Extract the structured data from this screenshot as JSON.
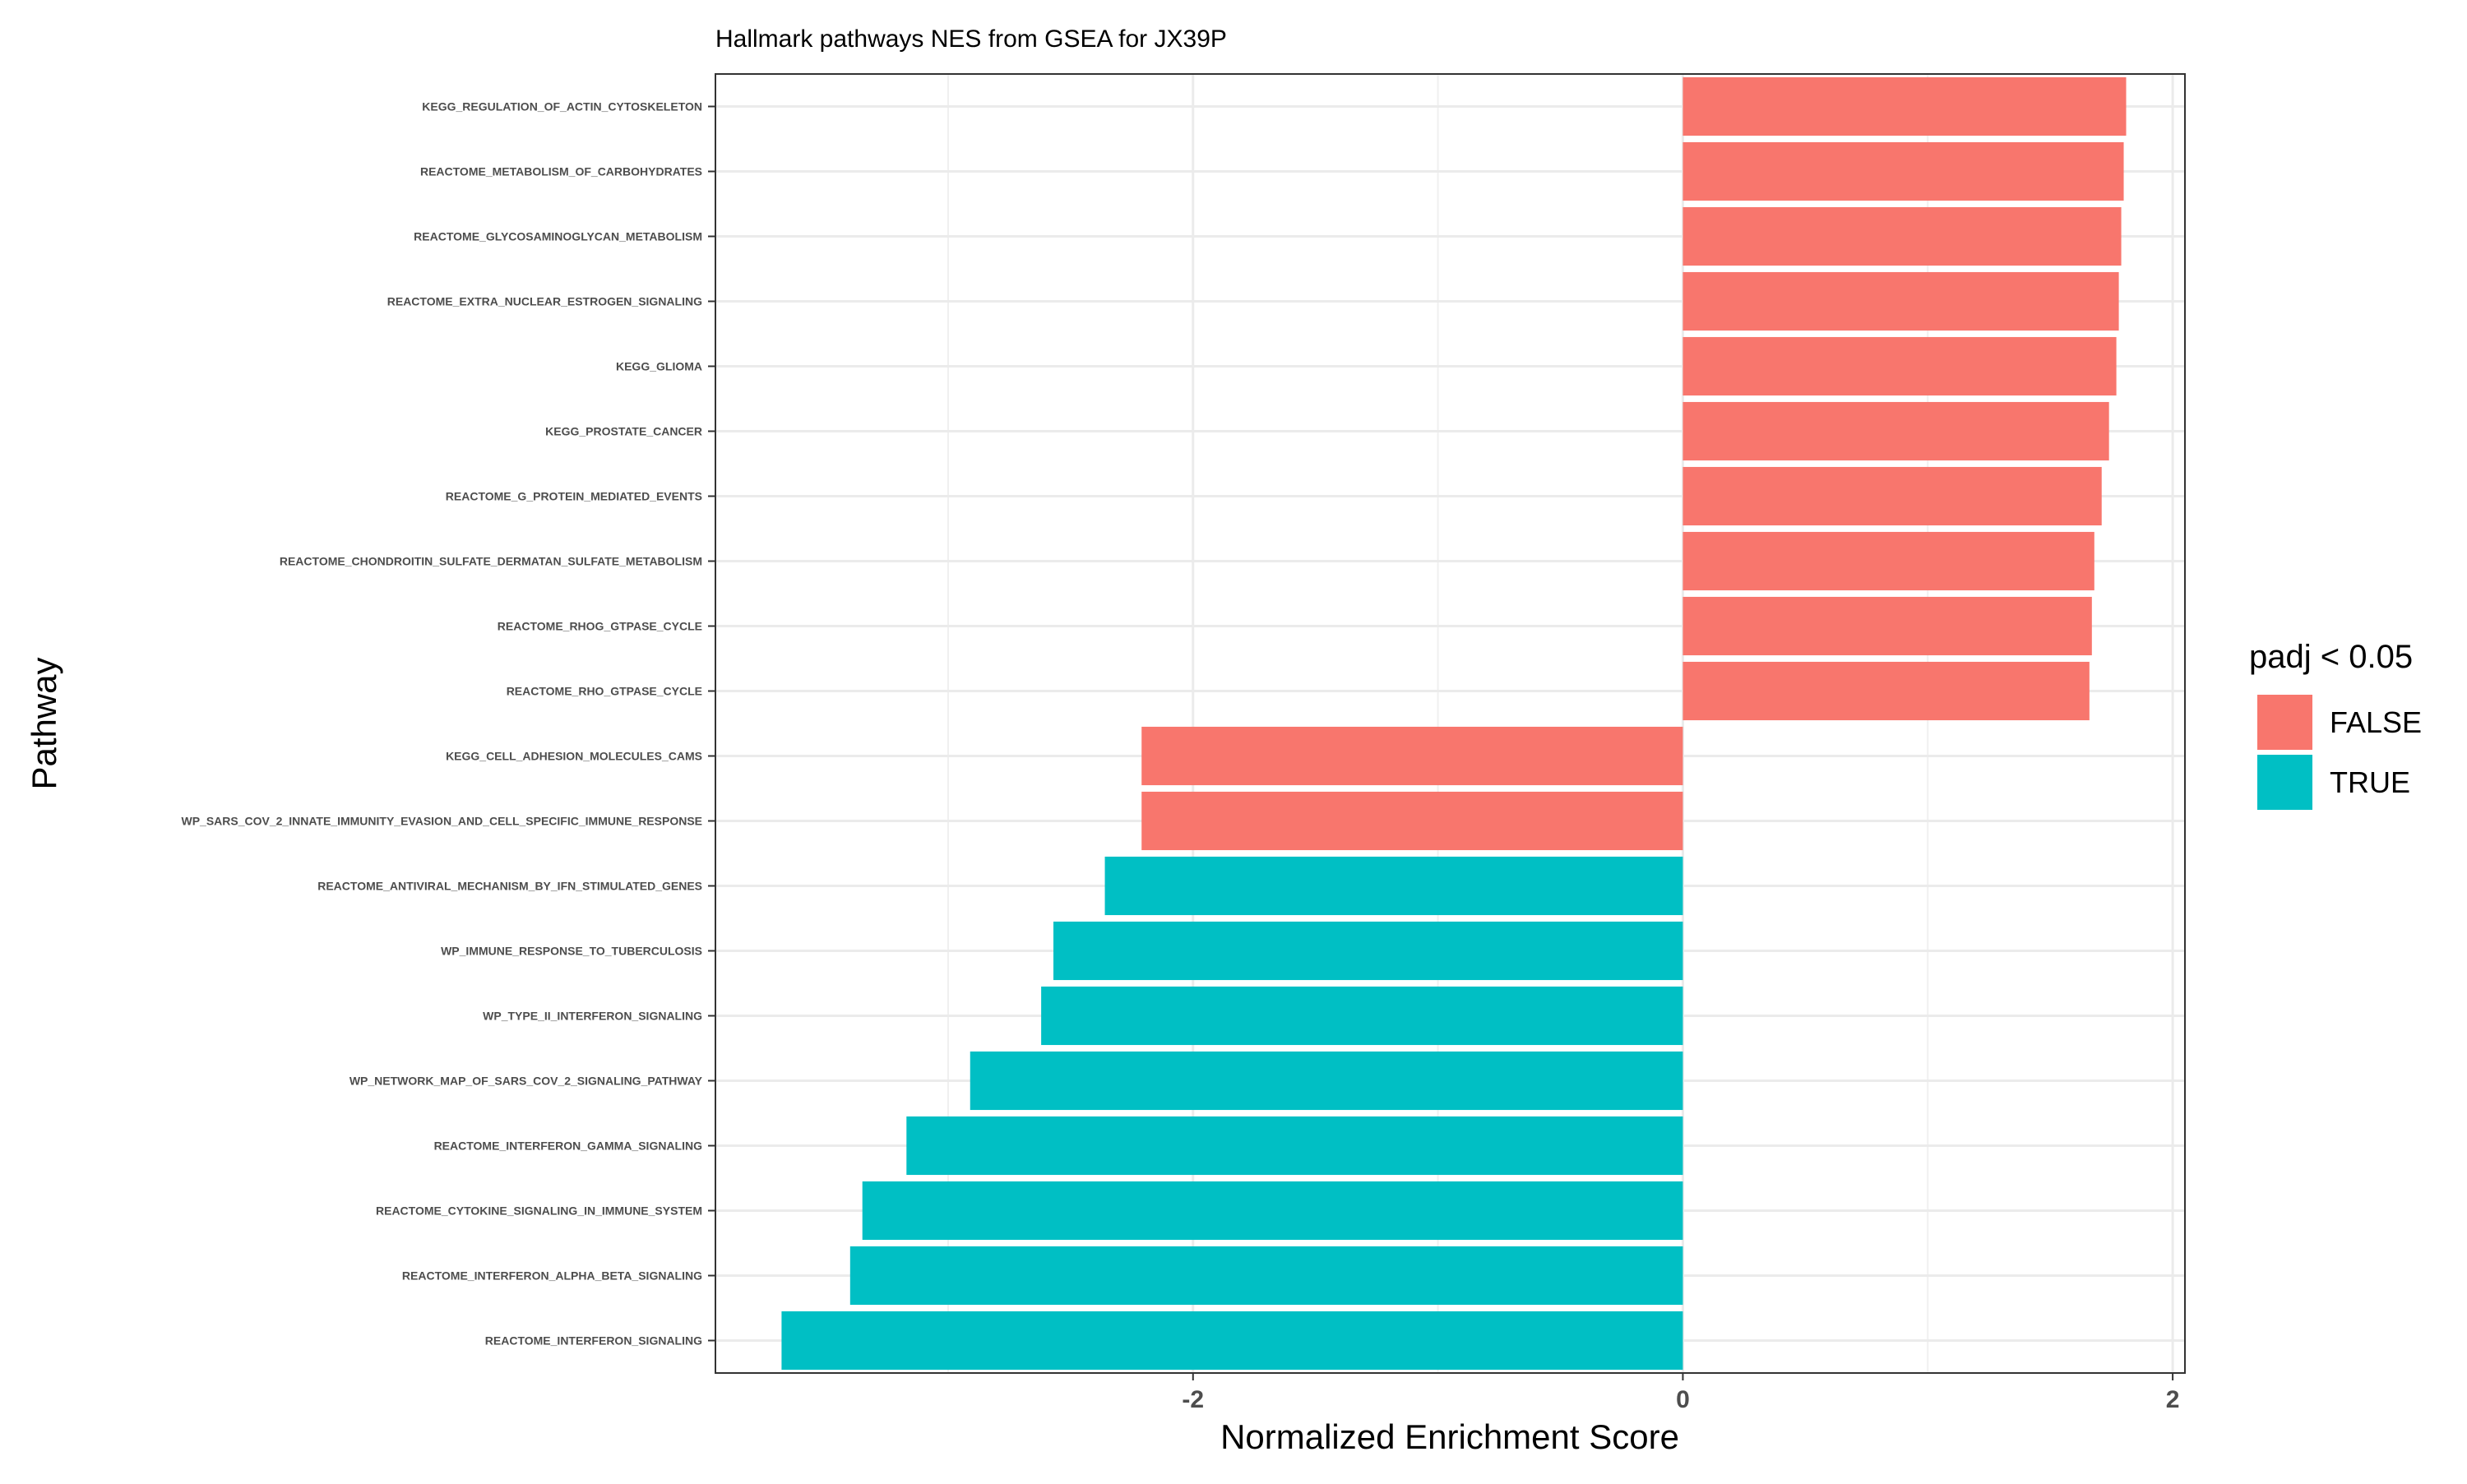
{
  "chart_data": {
    "type": "bar",
    "orientation": "horizontal",
    "title": "Hallmark pathways NES from GSEA for JX39P",
    "xlabel": "Normalized Enrichment Score",
    "ylabel": "Pathway",
    "xlim": [
      -3.95,
      2.05
    ],
    "xticks": [
      -2,
      0,
      2
    ],
    "xtick_labels": [
      "-2",
      "0",
      "2"
    ],
    "grid": true,
    "legend": {
      "title": "padj < 0.05",
      "placement": "right",
      "entries": [
        {
          "label": "FALSE",
          "color": "#F8766D"
        },
        {
          "label": "TRUE",
          "color": "#00BFC4"
        }
      ]
    },
    "categories": [
      "KEGG_REGULATION_OF_ACTIN_CYTOSKELETON",
      "REACTOME_METABOLISM_OF_CARBOHYDRATES",
      "REACTOME_GLYCOSAMINOGLYCAN_METABOLISM",
      "REACTOME_EXTRA_NUCLEAR_ESTROGEN_SIGNALING",
      "KEGG_GLIOMA",
      "KEGG_PROSTATE_CANCER",
      "REACTOME_G_PROTEIN_MEDIATED_EVENTS",
      "REACTOME_CHONDROITIN_SULFATE_DERMATAN_SULFATE_METABOLISM",
      "REACTOME_RHOG_GTPASE_CYCLE",
      "REACTOME_RHO_GTPASE_CYCLE",
      "KEGG_CELL_ADHESION_MOLECULES_CAMS",
      "WP_SARS_COV_2_INNATE_IMMUNITY_EVASION_AND_CELL_SPECIFIC_IMMUNE_RESPONSE",
      "REACTOME_ANTIVIRAL_MECHANISM_BY_IFN_STIMULATED_GENES",
      "WP_IMMUNE_RESPONSE_TO_TUBERCULOSIS",
      "WP_TYPE_II_INTERFERON_SIGNALING",
      "WP_NETWORK_MAP_OF_SARS_COV_2_SIGNALING_PATHWAY",
      "REACTOME_INTERFERON_GAMMA_SIGNALING",
      "REACTOME_CYTOKINE_SIGNALING_IN_IMMUNE_SYSTEM",
      "REACTOME_INTERFERON_ALPHA_BETA_SIGNALING",
      "REACTOME_INTERFERON_SIGNALING"
    ],
    "values": [
      1.81,
      1.8,
      1.79,
      1.78,
      1.77,
      1.74,
      1.71,
      1.68,
      1.67,
      1.66,
      -2.21,
      -2.21,
      -2.36,
      -2.57,
      -2.62,
      -2.91,
      -3.17,
      -3.35,
      -3.4,
      -3.68
    ],
    "significant": [
      "FALSE",
      "FALSE",
      "FALSE",
      "FALSE",
      "FALSE",
      "FALSE",
      "FALSE",
      "FALSE",
      "FALSE",
      "FALSE",
      "FALSE",
      "FALSE",
      "TRUE",
      "TRUE",
      "TRUE",
      "TRUE",
      "TRUE",
      "TRUE",
      "TRUE",
      "TRUE"
    ]
  }
}
